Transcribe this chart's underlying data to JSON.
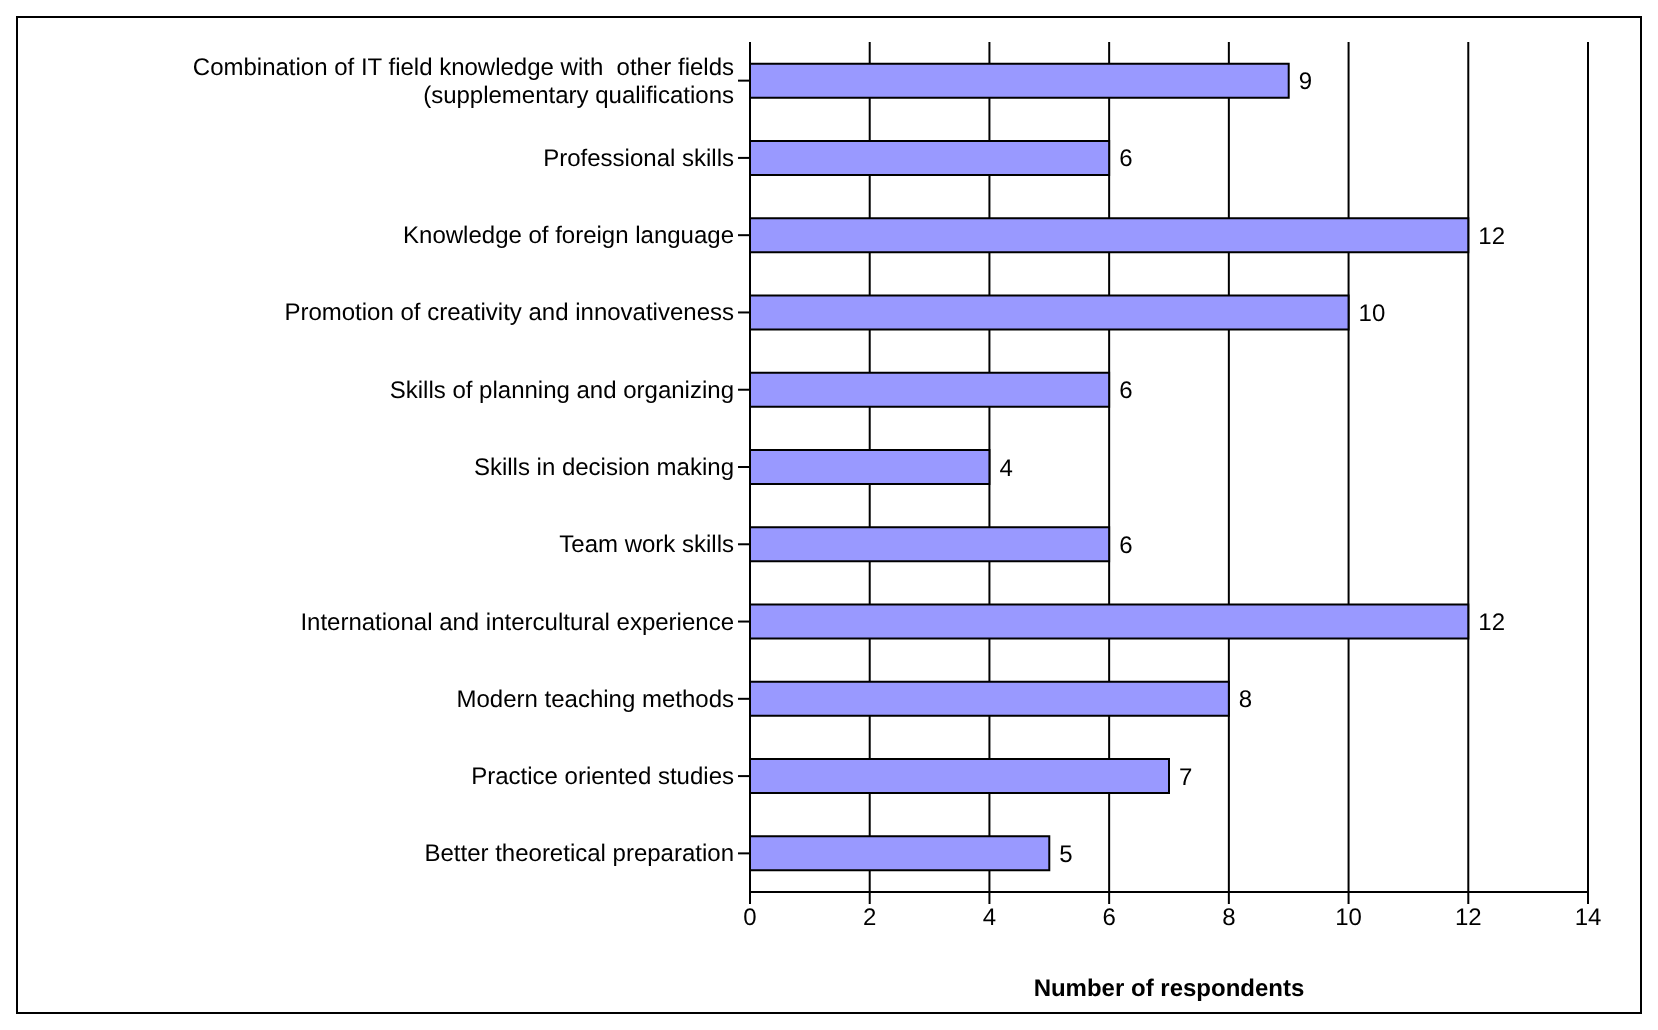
{
  "chart_data": {
    "type": "bar",
    "orientation": "horizontal",
    "xlabel": "Number of respondents",
    "categories": [
      "Combination of IT field knowledge with  other fields (supplementary qualifications",
      "Professional skills",
      "Knowledge of foreign language",
      "Promotion of creativity and innovativeness",
      "Skills of planning and organizing",
      "Skills in decision making",
      "Team work skills",
      "International and intercultural experience",
      "Modern teaching methods",
      "Practice oriented studies",
      "Better theoretical preparation"
    ],
    "values": [
      9,
      6,
      12,
      10,
      6,
      4,
      6,
      12,
      8,
      7,
      5
    ],
    "color": "#9999ff",
    "xlim": [
      0,
      14
    ],
    "xticks": [
      0,
      2,
      4,
      6,
      8,
      10,
      12,
      14
    ],
    "grid": "x",
    "data_labels": true,
    "legend": false
  }
}
